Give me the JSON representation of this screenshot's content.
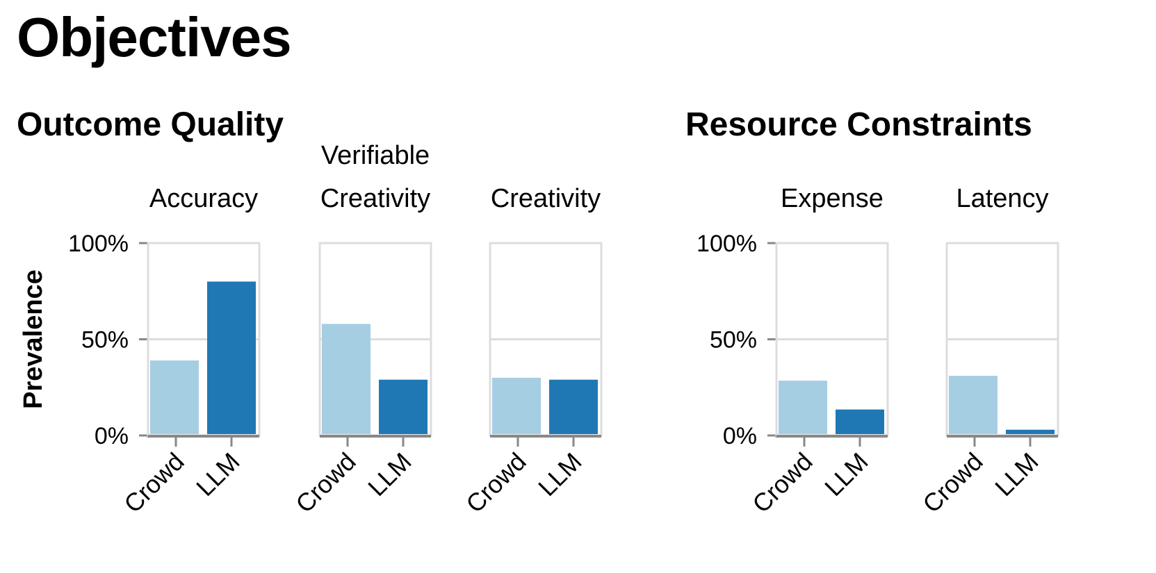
{
  "title": "Objectives",
  "groups": [
    {
      "title": "Outcome Quality"
    },
    {
      "title": "Resource Constraints"
    }
  ],
  "colors": {
    "Crowd": "#a6cee3",
    "LLM": "#1f78b4",
    "grid": "#dddddd",
    "axis": "#888888"
  },
  "chart_data": {
    "type": "bar",
    "ylabel": "Prevalence",
    "ylim": [
      0,
      100
    ],
    "yticks": [
      "0%",
      "50%",
      "100%"
    ],
    "categories": [
      "Crowd",
      "LLM"
    ],
    "grid": true,
    "panels": [
      {
        "group": "Outcome Quality",
        "title": [
          "Accuracy"
        ],
        "values": [
          39,
          80
        ]
      },
      {
        "group": "Outcome Quality",
        "title": [
          "Verifiable",
          "Creativity"
        ],
        "values": [
          58,
          29
        ]
      },
      {
        "group": "Outcome Quality",
        "title": [
          "Creativity"
        ],
        "values": [
          30,
          29
        ]
      },
      {
        "group": "Resource Constraints",
        "title": [
          "Expense"
        ],
        "values": [
          28.5,
          13.5
        ]
      },
      {
        "group": "Resource Constraints",
        "title": [
          "Latency"
        ],
        "values": [
          31,
          3
        ]
      }
    ]
  }
}
